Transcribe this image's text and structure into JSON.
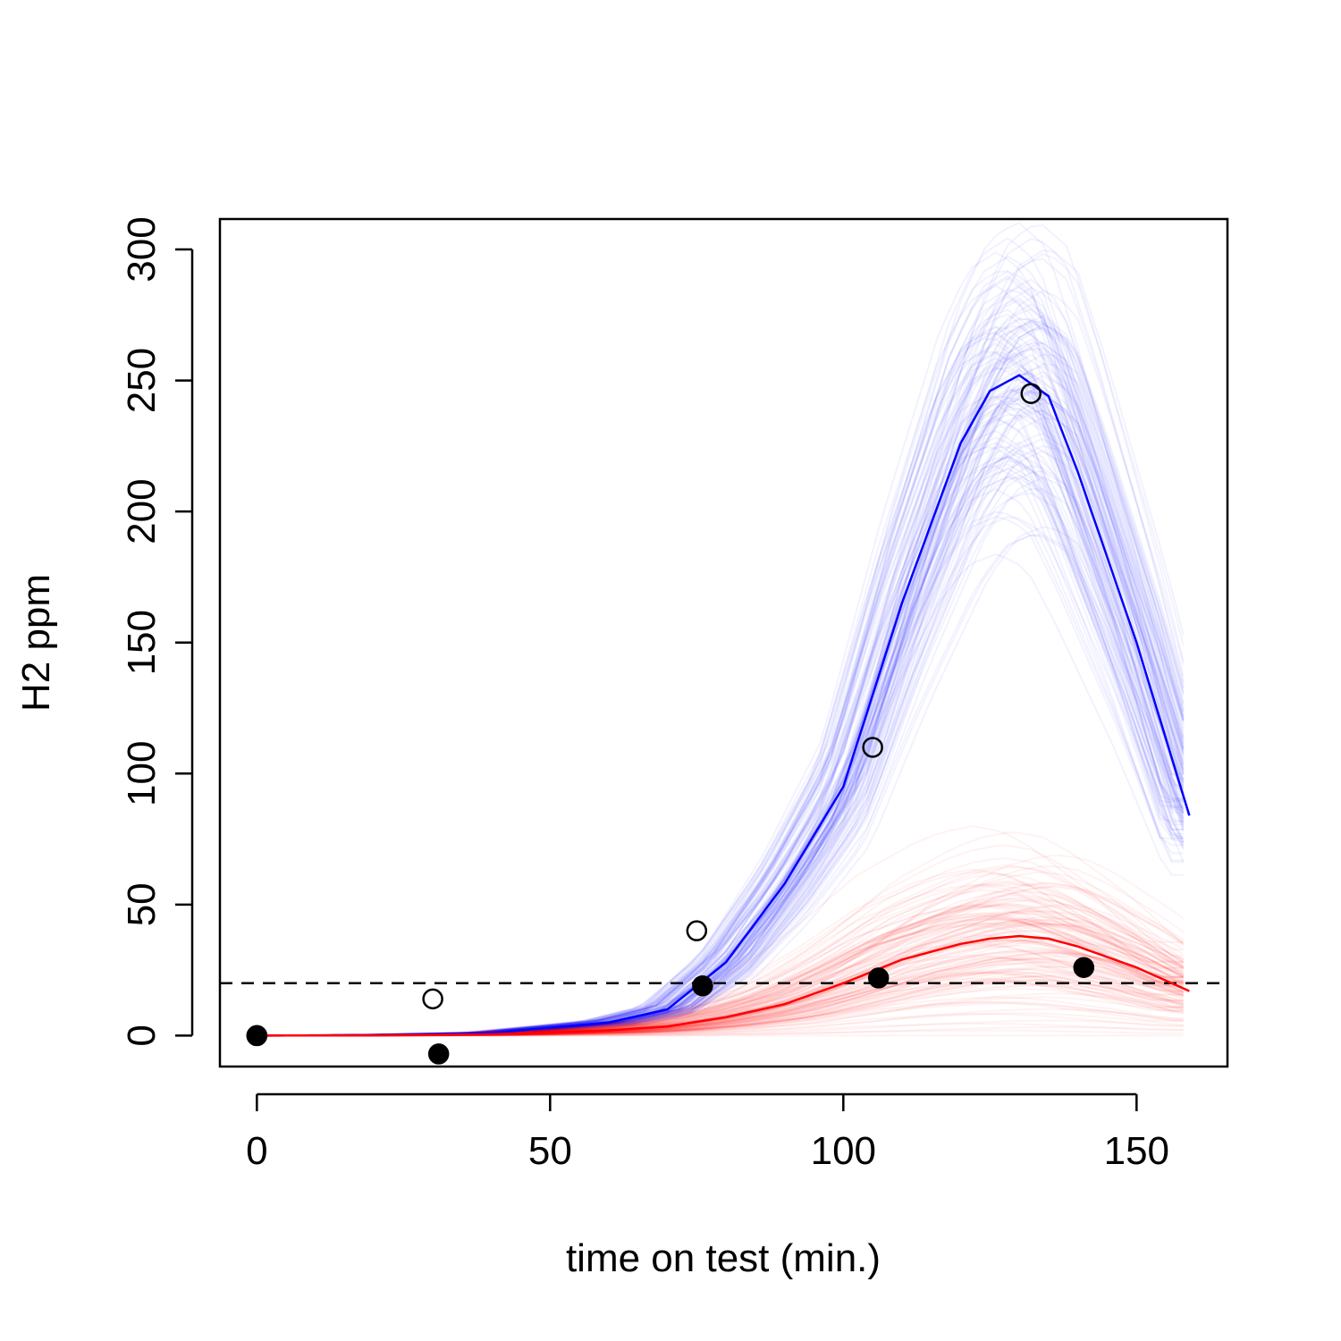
{
  "chart_data": {
    "type": "line",
    "title": "",
    "xlabel": "time on test (min.)",
    "ylabel": "H2 ppm",
    "xlim": [
      -6.3,
      165.5
    ],
    "ylim": [
      -11.8,
      311.6
    ],
    "xticks": [
      0,
      50,
      100,
      150
    ],
    "yticks": [
      0,
      50,
      100,
      150,
      200,
      250,
      300
    ],
    "threshold": {
      "y": 20,
      "style": "dashed",
      "color": "#000000"
    },
    "series": [
      {
        "color": "#0000ff",
        "band_color": "#0000ff",
        "curve": {
          "x": [
            0,
            20,
            40,
            60,
            70,
            80,
            90,
            100,
            110,
            120,
            125,
            130,
            135,
            140,
            150,
            159
          ],
          "y": [
            0,
            0.2,
            1,
            5,
            10,
            28,
            58,
            95,
            165,
            226,
            246,
            252,
            244,
            215,
            150,
            84
          ]
        },
        "points": {
          "x": [
            0,
            30,
            75,
            105,
            132
          ],
          "y": [
            0,
            14,
            40,
            110,
            245
          ],
          "marker": "open-circle"
        }
      },
      {
        "color": "#ff0000",
        "band_color": "#ff0000",
        "curve": {
          "x": [
            0,
            20,
            40,
            60,
            70,
            80,
            90,
            100,
            110,
            120,
            125,
            130,
            135,
            140,
            150,
            159
          ],
          "y": [
            0,
            0.1,
            0.5,
            2,
            3.5,
            7,
            12,
            20,
            29,
            35,
            37,
            38,
            37,
            34,
            26,
            17
          ]
        },
        "points": {
          "x": [
            0,
            31,
            76,
            106,
            141
          ],
          "y": [
            0,
            -7,
            19,
            22,
            26
          ],
          "marker": "filled-circle"
        }
      }
    ]
  }
}
